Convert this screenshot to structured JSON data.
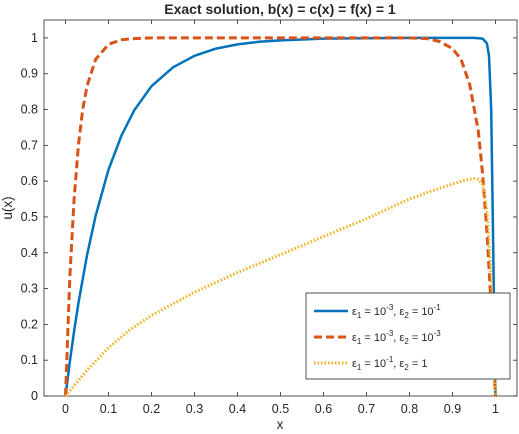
{
  "chart_data": {
    "type": "line",
    "title": "Exact solution, b(x) = c(x) = f(x) = 1",
    "xlabel": "x",
    "ylabel": "u(x)",
    "xlim": [
      -0.05,
      1.05
    ],
    "ylim": [
      0,
      1.05
    ],
    "xticks": [
      0,
      0.1,
      0.2,
      0.3,
      0.4,
      0.5,
      0.6,
      0.7,
      0.8,
      0.9,
      1
    ],
    "xtick_labels": [
      "0",
      "0.1",
      "0.2",
      "0.3",
      "0.4",
      "0.5",
      "0.6",
      "0.7",
      "0.8",
      "0.9",
      "1"
    ],
    "yticks": [
      0,
      0.1,
      0.2,
      0.3,
      0.4,
      0.5,
      0.6,
      0.7,
      0.8,
      0.9,
      1
    ],
    "ytick_labels": [
      "0",
      "0.1",
      "0.2",
      "0.3",
      "0.4",
      "0.5",
      "0.6",
      "0.7",
      "0.8",
      "0.9",
      "1"
    ],
    "grid": false,
    "legend_position": "bottom-right",
    "series": [
      {
        "name": "ε1 = 10^-3, ε2 = 10^-1",
        "legend": {
          "a": "1",
          "aexp": "-3",
          "b": "2",
          "bexp": "-1"
        },
        "color": "#0072BD",
        "style": "solid",
        "x": [
          0,
          0.01,
          0.02,
          0.03,
          0.05,
          0.07,
          0.1,
          0.13,
          0.16,
          0.2,
          0.25,
          0.3,
          0.35,
          0.4,
          0.45,
          0.5,
          0.6,
          0.7,
          0.8,
          0.9,
          0.95,
          0.97,
          0.98,
          0.985,
          0.99,
          0.995,
          0.998,
          1
        ],
        "y": [
          0,
          0.095,
          0.181,
          0.259,
          0.393,
          0.503,
          0.632,
          0.727,
          0.798,
          0.865,
          0.918,
          0.95,
          0.97,
          0.982,
          0.989,
          0.993,
          0.998,
          0.999,
          1.0,
          1.0,
          1.0,
          0.998,
          0.985,
          0.95,
          0.8,
          0.4,
          0.12,
          0
        ]
      },
      {
        "name": "ε1 = 10^-3, ε2 = 10^-3",
        "legend": {
          "a": "1",
          "aexp": "-3",
          "b": "2",
          "bexp": "-3"
        },
        "color": "#D95319",
        "style": "dashed",
        "x": [
          0,
          0.01,
          0.02,
          0.03,
          0.04,
          0.05,
          0.07,
          0.1,
          0.13,
          0.16,
          0.2,
          0.5,
          0.8,
          0.84,
          0.87,
          0.9,
          0.92,
          0.94,
          0.96,
          0.97,
          0.98,
          0.99,
          0.995,
          1
        ],
        "y": [
          0,
          0.33,
          0.55,
          0.7,
          0.8,
          0.865,
          0.94,
          0.982,
          0.995,
          0.998,
          1.0,
          1.0,
          1.0,
          0.998,
          0.99,
          0.97,
          0.94,
          0.87,
          0.74,
          0.62,
          0.46,
          0.25,
          0.12,
          0
        ]
      },
      {
        "name": "ε1 = 10^-1, ε2 = 1",
        "legend": {
          "a": "1",
          "aexp": "-1",
          "b": "2",
          "bexp": ""
        },
        "legend_tail": "1",
        "color": "#EDB120",
        "style": "dotted",
        "x": [
          0,
          0.05,
          0.1,
          0.15,
          0.2,
          0.3,
          0.4,
          0.5,
          0.6,
          0.7,
          0.8,
          0.85,
          0.9,
          0.93,
          0.95,
          0.96,
          0.97,
          0.98,
          0.99,
          1
        ],
        "y": [
          0,
          0.072,
          0.135,
          0.185,
          0.225,
          0.29,
          0.345,
          0.395,
          0.445,
          0.495,
          0.55,
          0.572,
          0.592,
          0.603,
          0.607,
          0.605,
          0.59,
          0.52,
          0.33,
          0
        ]
      }
    ]
  }
}
